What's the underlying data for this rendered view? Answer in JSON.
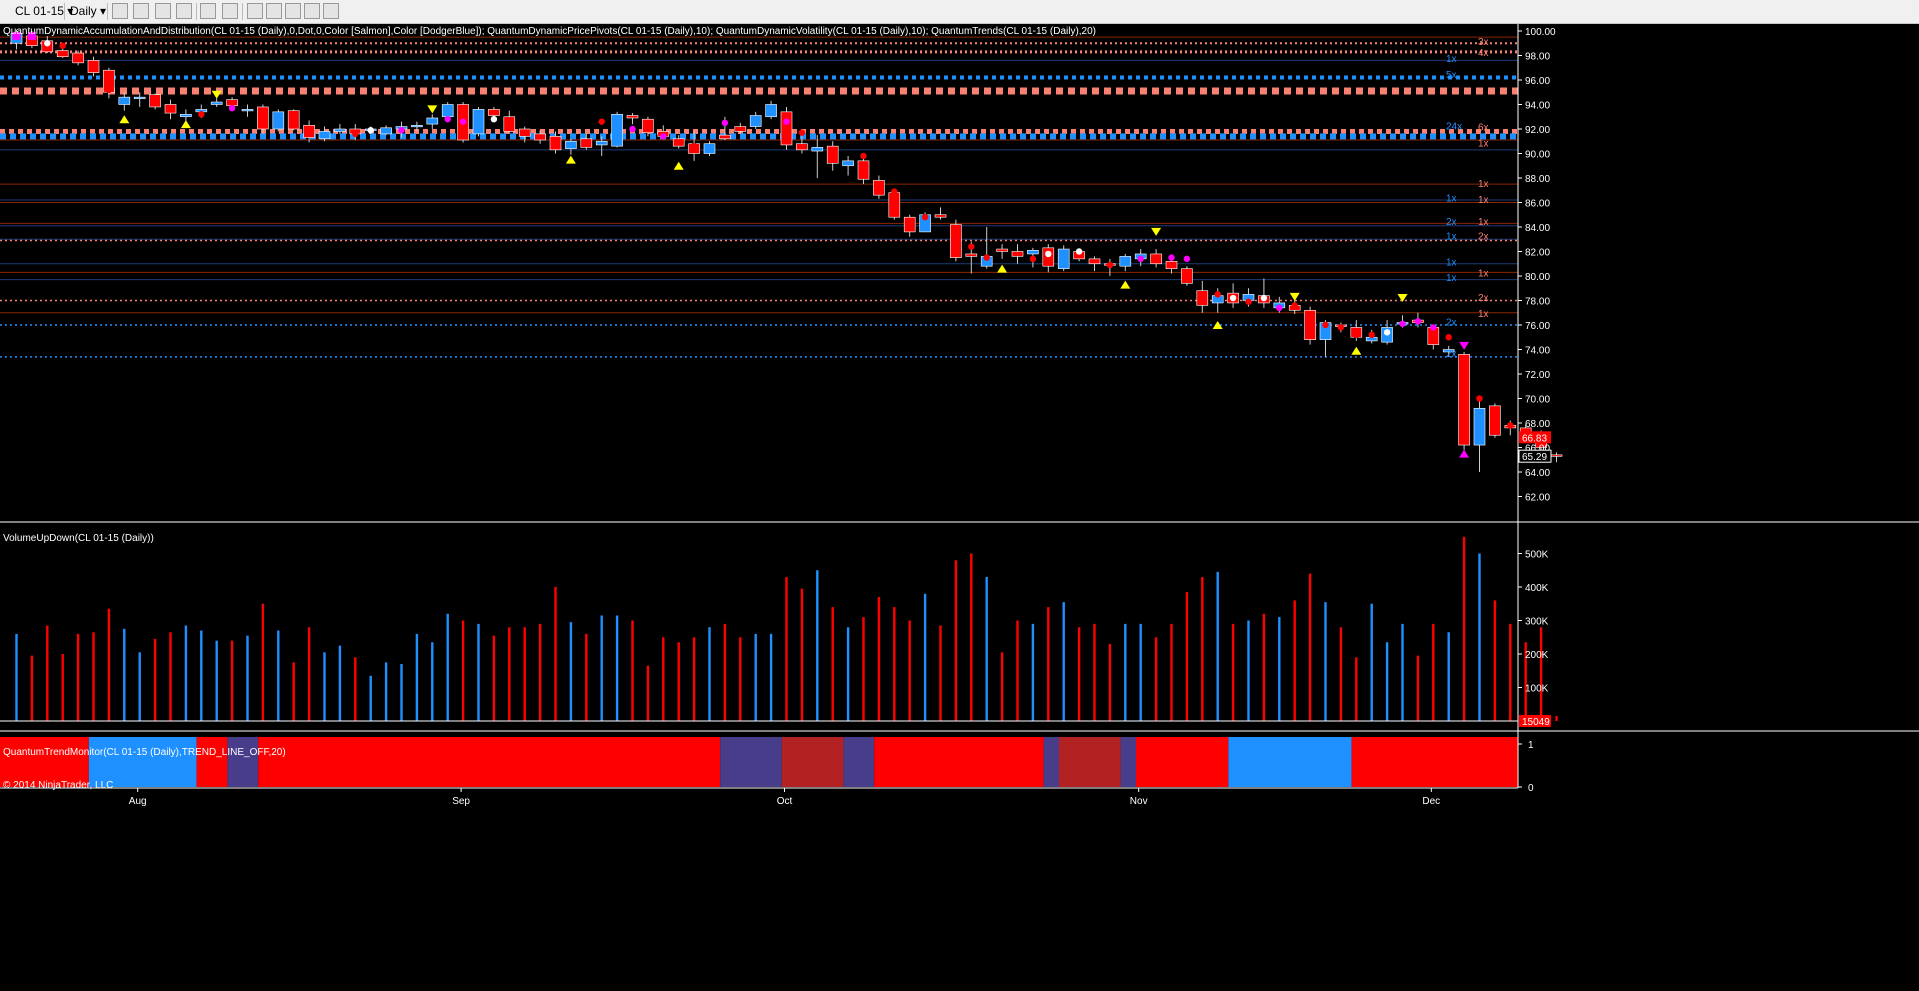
{
  "toolbar": {
    "instrument": "CL 01-15",
    "period": "Daily",
    "icons": [
      "bar-type-icon",
      "drawing-pencil-icon",
      "pointer-icon",
      "crosshair-icon",
      "cursor-icon",
      "zoom-icon",
      "properties-icon",
      "data-box-icon",
      "chart-trader-icon",
      "strategy-icon",
      "window-icon"
    ]
  },
  "price_panel": {
    "label": "QuantumDynamicAccumulationAndDistribution(CL 01-15 (Daily),0,Dot,0,Color [Salmon],Color [DodgerBlue]); QuantumDynamicPricePivots(CL 01-15 (Daily),10); QuantumDynamicVolatility(CL 01-15 (Daily),10); QuantumTrends(CL 01-15 (Daily),20)",
    "y_ticks": [
      "100.00",
      "98.00",
      "96.00",
      "94.00",
      "92.00",
      "90.00",
      "88.00",
      "86.00",
      "84.00",
      "82.00",
      "80.00",
      "78.00",
      "76.00",
      "74.00",
      "72.00",
      "70.00",
      "68.00",
      "66.00",
      "64.00",
      "62.00"
    ],
    "last_price_red": "66.83",
    "last_price_white": "65.29",
    "level_markers": [
      {
        "text": "1x",
        "price": 101.5,
        "color": "#fa8072"
      },
      {
        "text": "3x",
        "price": 99.2,
        "color": "#fa8072"
      },
      {
        "text": "4x",
        "price": 98.3,
        "color": "#fa8072"
      },
      {
        "text": "1x",
        "price": 97.8,
        "color": "#1e90ff"
      },
      {
        "text": "5x",
        "price": 96.5,
        "color": "#1e90ff"
      },
      {
        "text": "24x",
        "price": 92.3,
        "color": "#1e90ff"
      },
      {
        "text": "6x",
        "price": 92.2,
        "color": "#fa8072"
      },
      {
        "text": "1x",
        "price": 90.9,
        "color": "#fa8072"
      },
      {
        "text": "1x",
        "price": 87.6,
        "color": "#fa8072"
      },
      {
        "text": "1x",
        "price": 86.4,
        "color": "#1e90ff"
      },
      {
        "text": "1x",
        "price": 86.3,
        "color": "#fa8072"
      },
      {
        "text": "2x",
        "price": 84.5,
        "color": "#1e90ff"
      },
      {
        "text": "1x",
        "price": 84.5,
        "color": "#fa8072"
      },
      {
        "text": "1x",
        "price": 83.3,
        "color": "#1e90ff"
      },
      {
        "text": "2x",
        "price": 83.3,
        "color": "#fa8072"
      },
      {
        "text": "1x",
        "price": 81.2,
        "color": "#1e90ff"
      },
      {
        "text": "1x",
        "price": 80.3,
        "color": "#fa8072"
      },
      {
        "text": "1x",
        "price": 79.9,
        "color": "#1e90ff"
      },
      {
        "text": "2x",
        "price": 78.3,
        "color": "#fa8072"
      },
      {
        "text": "1x",
        "price": 77.0,
        "color": "#fa8072"
      },
      {
        "text": "2x",
        "price": 76.3,
        "color": "#1e90ff"
      },
      {
        "text": "2x",
        "price": 73.7,
        "color": "#1e90ff"
      }
    ]
  },
  "volume_panel": {
    "label": "VolumeUpDown(CL 01-15 (Daily))",
    "y_ticks": [
      "500K",
      "400K",
      "300K",
      "200K",
      "100K"
    ],
    "last_value": "15049"
  },
  "trend_panel": {
    "label": "QuantumTrendMonitor(CL 01-15 (Daily),TREND_LINE_OFF,20)",
    "y_ticks": [
      "1",
      "0"
    ],
    "segments": [
      {
        "from": 0,
        "to": 5,
        "color": "#ff0000"
      },
      {
        "from": 5,
        "to": 12,
        "color": "#1e90ff"
      },
      {
        "from": 12,
        "to": 14,
        "color": "#ff0000"
      },
      {
        "from": 14,
        "to": 16,
        "color": "#483d8b"
      },
      {
        "from": 16,
        "to": 46,
        "color": "#ff0000"
      },
      {
        "from": 46,
        "to": 50,
        "color": "#483d8b"
      },
      {
        "from": 50,
        "to": 54,
        "color": "#b22222"
      },
      {
        "from": 54,
        "to": 56,
        "color": "#483d8b"
      },
      {
        "from": 56,
        "to": 67,
        "color": "#ff0000"
      },
      {
        "from": 67,
        "to": 68,
        "color": "#483d8b"
      },
      {
        "from": 68,
        "to": 72,
        "color": "#b22222"
      },
      {
        "from": 72,
        "to": 73,
        "color": "#483d8b"
      },
      {
        "from": 73,
        "to": 79,
        "color": "#ff0000"
      },
      {
        "from": 79,
        "to": 87,
        "color": "#1e90ff"
      },
      {
        "from": 87,
        "to": 156,
        "color": "#ff0000"
      }
    ]
  },
  "x_axis": {
    "labels": [
      {
        "text": "Aug",
        "index": 8
      },
      {
        "text": "Sep",
        "index": 29
      },
      {
        "text": "Oct",
        "index": 50
      },
      {
        "text": "Nov",
        "index": 73
      },
      {
        "text": "Dec",
        "index": 92
      }
    ]
  },
  "copyright": "© 2014 NinjaTrader, LLC",
  "colors": {
    "up_candle": "#1e90ff",
    "down_candle": "#ff0000",
    "salmon": "#fa8072",
    "dodgerblue": "#1e90ff",
    "pivot_yellow": "#ffff00",
    "magenta": "#ff00ff",
    "panel_border": "#ffffff",
    "grid_red": "#8b2500",
    "grid_blue": "#1e3c78"
  },
  "candles": [
    [
      99.0,
      100.1,
      98.5,
      99.8,
      1,
      260
    ],
    [
      99.6,
      100.0,
      98.6,
      98.8,
      0,
      195
    ],
    [
      99.2,
      99.6,
      98.2,
      98.3,
      0,
      285
    ],
    [
      98.4,
      98.8,
      97.8,
      97.9,
      0,
      200
    ],
    [
      98.2,
      98.4,
      97.2,
      97.4,
      0,
      260
    ],
    [
      97.6,
      97.9,
      96.3,
      96.6,
      0,
      265
    ],
    [
      96.8,
      97.0,
      94.5,
      95.0,
      0,
      335
    ],
    [
      94.6,
      95.0,
      93.5,
      94.0,
      1,
      275
    ],
    [
      94.6,
      95.0,
      93.8,
      94.5,
      1,
      205
    ],
    [
      94.8,
      94.9,
      93.6,
      93.8,
      0,
      245
    ],
    [
      94.0,
      94.4,
      92.8,
      93.3,
      0,
      265
    ],
    [
      93.2,
      93.6,
      92.6,
      93.0,
      1,
      285
    ],
    [
      93.4,
      94.0,
      92.9,
      93.6,
      1,
      270
    ],
    [
      94.0,
      94.5,
      93.8,
      94.2,
      1,
      240
    ],
    [
      94.4,
      94.6,
      93.6,
      93.9,
      0,
      240
    ],
    [
      93.6,
      94.0,
      93.0,
      93.5,
      1,
      255
    ],
    [
      93.8,
      94.0,
      91.6,
      92.0,
      0,
      350
    ],
    [
      93.4,
      93.6,
      91.8,
      92.0,
      1,
      270
    ],
    [
      93.5,
      93.6,
      91.9,
      92.0,
      0,
      175
    ],
    [
      92.3,
      92.7,
      90.9,
      91.3,
      0,
      280
    ],
    [
      91.2,
      92.2,
      91.0,
      91.8,
      1,
      205
    ],
    [
      92.0,
      92.4,
      91.6,
      91.8,
      1,
      225
    ],
    [
      92.0,
      92.4,
      91.1,
      91.6,
      0,
      190
    ],
    [
      92.0,
      92.2,
      91.6,
      92.0,
      1,
      135
    ],
    [
      91.6,
      92.3,
      91.5,
      92.1,
      1,
      175
    ],
    [
      92.0,
      92.6,
      91.3,
      92.2,
      1,
      170
    ],
    [
      92.2,
      92.6,
      91.8,
      92.3,
      1,
      260
    ],
    [
      92.4,
      93.2,
      92.0,
      92.9,
      1,
      235
    ],
    [
      93.0,
      94.2,
      92.6,
      94.0,
      1,
      320
    ],
    [
      94.0,
      94.2,
      90.9,
      91.1,
      0,
      300
    ],
    [
      91.6,
      93.8,
      91.4,
      93.6,
      1,
      290
    ],
    [
      93.6,
      93.8,
      92.9,
      93.1,
      0,
      255
    ],
    [
      93.0,
      93.5,
      91.6,
      91.8,
      0,
      280
    ],
    [
      92.0,
      92.2,
      90.9,
      91.4,
      0,
      280
    ],
    [
      91.6,
      91.9,
      90.8,
      91.1,
      0,
      290
    ],
    [
      91.4,
      91.8,
      90.0,
      90.3,
      0,
      400
    ],
    [
      90.4,
      91.2,
      89.9,
      91.0,
      1,
      295
    ],
    [
      91.2,
      91.6,
      90.3,
      90.5,
      0,
      260
    ],
    [
      91.0,
      91.4,
      89.8,
      90.7,
      1,
      315
    ],
    [
      90.6,
      93.4,
      90.5,
      93.2,
      1,
      315
    ],
    [
      93.1,
      93.3,
      92.4,
      92.9,
      0,
      300
    ],
    [
      92.8,
      93.0,
      91.4,
      91.7,
      0,
      165
    ],
    [
      91.8,
      92.3,
      91.3,
      91.4,
      0,
      250
    ],
    [
      91.2,
      91.5,
      90.4,
      90.6,
      0,
      235
    ],
    [
      90.8,
      91.8,
      89.4,
      90.0,
      0,
      250
    ],
    [
      90.0,
      91.0,
      89.8,
      90.8,
      1,
      280
    ],
    [
      91.2,
      93.0,
      91.1,
      91.5,
      0,
      290
    ],
    [
      91.8,
      92.5,
      91.6,
      92.2,
      0,
      250
    ],
    [
      92.2,
      93.4,
      92.0,
      93.1,
      1,
      260
    ],
    [
      93.0,
      94.3,
      92.8,
      94.0,
      1,
      260
    ],
    [
      93.4,
      93.8,
      90.3,
      90.7,
      0,
      430
    ],
    [
      90.8,
      91.8,
      90.0,
      90.3,
      0,
      395
    ],
    [
      90.5,
      91.5,
      88.0,
      90.2,
      1,
      450
    ],
    [
      90.6,
      91.0,
      88.6,
      89.2,
      0,
      340
    ],
    [
      89.4,
      89.8,
      88.2,
      89.0,
      1,
      280
    ],
    [
      89.4,
      89.6,
      87.5,
      87.9,
      0,
      310
    ],
    [
      87.8,
      88.2,
      86.3,
      86.6,
      0,
      370
    ],
    [
      86.8,
      87.0,
      84.6,
      84.8,
      0,
      340
    ],
    [
      84.8,
      85.0,
      83.2,
      83.6,
      0,
      300
    ],
    [
      83.6,
      85.2,
      83.6,
      85.0,
      1,
      380
    ],
    [
      85.0,
      85.6,
      84.6,
      84.8,
      0,
      285
    ],
    [
      84.2,
      84.6,
      81.2,
      81.5,
      0,
      480
    ],
    [
      81.8,
      82.8,
      80.2,
      81.6,
      0,
      500
    ],
    [
      80.8,
      84.0,
      80.6,
      81.6,
      1,
      430
    ],
    [
      82.2,
      82.6,
      81.4,
      82.0,
      0,
      205
    ],
    [
      82.0,
      82.6,
      81.0,
      81.6,
      0,
      300
    ],
    [
      81.8,
      82.3,
      80.7,
      82.1,
      1,
      290
    ],
    [
      82.3,
      82.6,
      80.3,
      80.8,
      0,
      340
    ],
    [
      80.6,
      82.5,
      80.4,
      82.2,
      1,
      355
    ],
    [
      82.0,
      82.2,
      81.2,
      81.4,
      0,
      280
    ],
    [
      81.4,
      81.6,
      80.4,
      81.0,
      0,
      290
    ],
    [
      81.0,
      81.4,
      80.0,
      81.0,
      0,
      230
    ],
    [
      80.8,
      81.8,
      80.4,
      81.6,
      1,
      290
    ],
    [
      81.4,
      82.2,
      80.8,
      81.8,
      1,
      290
    ],
    [
      81.8,
      82.2,
      80.7,
      81.0,
      0,
      250
    ],
    [
      81.2,
      81.4,
      80.2,
      80.6,
      0,
      290
    ],
    [
      80.6,
      80.8,
      79.2,
      79.4,
      0,
      385
    ],
    [
      78.8,
      79.6,
      77.0,
      77.6,
      0,
      430
    ],
    [
      77.8,
      79.0,
      77.0,
      78.4,
      1,
      445
    ],
    [
      78.6,
      79.4,
      77.4,
      77.8,
      0,
      290
    ],
    [
      78.0,
      79.0,
      77.5,
      78.5,
      1,
      300
    ],
    [
      78.4,
      79.8,
      77.4,
      77.8,
      0,
      320
    ],
    [
      77.8,
      78.3,
      77.0,
      77.4,
      1,
      310
    ],
    [
      77.6,
      78.3,
      76.9,
      77.2,
      0,
      360
    ],
    [
      77.2,
      77.5,
      74.4,
      74.8,
      0,
      440
    ],
    [
      74.8,
      76.4,
      73.4,
      76.2,
      1,
      355
    ],
    [
      76.0,
      76.2,
      75.4,
      75.9,
      0,
      280
    ],
    [
      75.8,
      76.4,
      74.7,
      75.0,
      0,
      190
    ],
    [
      75.0,
      75.6,
      74.5,
      74.7,
      1,
      350
    ],
    [
      74.6,
      76.4,
      74.4,
      75.8,
      1,
      235
    ],
    [
      76.1,
      76.8,
      75.8,
      76.2,
      1,
      290
    ],
    [
      76.4,
      77.0,
      75.8,
      76.2,
      0,
      195
    ],
    [
      75.8,
      76.0,
      74.0,
      74.4,
      0,
      290
    ],
    [
      74.0,
      74.3,
      73.4,
      73.8,
      1,
      265
    ],
    [
      73.6,
      73.8,
      65.8,
      66.2,
      0,
      550
    ],
    [
      66.2,
      70.2,
      64.0,
      69.2,
      1,
      500
    ],
    [
      69.4,
      69.6,
      66.8,
      67.0,
      0,
      360
    ],
    [
      67.6,
      68.2,
      67.0,
      67.8,
      0,
      290
    ],
    [
      67.6,
      67.9,
      66.8,
      67.0,
      0,
      235
    ],
    [
      67.2,
      67.4,
      65.6,
      66.0,
      0,
      280
    ],
    [
      65.4,
      65.6,
      64.8,
      65.3,
      0,
      15
    ]
  ],
  "markers": [
    [
      0,
      99.6,
      "sq",
      "#ff00ff"
    ],
    [
      1,
      99.6,
      "sq",
      "#ff00ff"
    ],
    [
      2,
      99.0,
      "dot",
      "#ffffff"
    ],
    [
      3,
      98.8,
      "dot",
      "#ff0000"
    ],
    [
      6,
      95.2,
      "dot",
      "#ff0000"
    ],
    [
      7,
      92.8,
      "tri",
      "#ffff00"
    ],
    [
      10,
      93.6,
      "dot",
      "#ff0000"
    ],
    [
      11,
      92.4,
      "tri",
      "#ffff00"
    ],
    [
      12,
      93.2,
      "dot",
      "#ff0000"
    ],
    [
      13,
      94.8,
      "tri_dn",
      "#ffff00"
    ],
    [
      14,
      93.7,
      "dot",
      "#ff00ff"
    ],
    [
      16,
      92.8,
      "dot",
      "#ff0000"
    ],
    [
      22,
      91.6,
      "dot",
      "#ff0000"
    ],
    [
      23,
      91.9,
      "dot",
      "#ffffff"
    ],
    [
      25,
      91.9,
      "dot",
      "#ff00ff"
    ],
    [
      27,
      93.6,
      "tri_dn",
      "#ffff00"
    ],
    [
      28,
      92.8,
      "dot",
      "#ff00ff"
    ],
    [
      29,
      92.6,
      "dot",
      "#ff00ff"
    ],
    [
      31,
      92.8,
      "dot",
      "#ffffff"
    ],
    [
      36,
      89.5,
      "tri",
      "#ffff00"
    ],
    [
      38,
      92.6,
      "dot",
      "#ff0000"
    ],
    [
      40,
      92.0,
      "dot",
      "#ff00ff"
    ],
    [
      42,
      91.4,
      "dot",
      "#ff00ff"
    ],
    [
      43,
      89.0,
      "tri",
      "#ffff00"
    ],
    [
      44,
      90.6,
      "dot",
      "#ff0000"
    ],
    [
      46,
      92.5,
      "dot",
      "#ff00ff"
    ],
    [
      50,
      92.6,
      "dot",
      "#ff00ff"
    ],
    [
      51,
      91.7,
      "dot",
      "#ff0000"
    ],
    [
      55,
      89.8,
      "dot",
      "#ff0000"
    ],
    [
      57,
      86.9,
      "dot",
      "#ff0000"
    ],
    [
      59,
      84.8,
      "dot",
      "#ff0000"
    ],
    [
      62,
      82.4,
      "dot",
      "#ff0000"
    ],
    [
      63,
      81.5,
      "dot",
      "#ff0000"
    ],
    [
      64,
      80.6,
      "tri",
      "#ffff00"
    ],
    [
      66,
      81.4,
      "dot",
      "#ff0000"
    ],
    [
      67,
      81.8,
      "dot",
      "#ffffff"
    ],
    [
      69,
      82.0,
      "dot",
      "#ffffff"
    ],
    [
      71,
      80.9,
      "dot",
      "#ff0000"
    ],
    [
      72,
      79.3,
      "tri",
      "#ffff00"
    ],
    [
      73,
      81.4,
      "dot",
      "#ff00ff"
    ],
    [
      74,
      83.6,
      "tri_dn",
      "#ffff00"
    ],
    [
      75,
      81.5,
      "dot",
      "#ff00ff"
    ],
    [
      76,
      81.4,
      "dot",
      "#ff00ff"
    ],
    [
      78,
      78.5,
      "dot",
      "#ff0000"
    ],
    [
      78,
      76.0,
      "tri",
      "#ffff00"
    ],
    [
      79,
      78.2,
      "dot",
      "#ffffff"
    ],
    [
      80,
      77.9,
      "dot",
      "#ff0000"
    ],
    [
      81,
      78.2,
      "dot",
      "#ffffff"
    ],
    [
      82,
      77.4,
      "dot",
      "#ff00ff"
    ],
    [
      83,
      78.3,
      "tri_dn",
      "#ffff00"
    ],
    [
      83,
      77.6,
      "dot",
      "#ff0000"
    ],
    [
      85,
      76.0,
      "dot",
      "#ff0000"
    ],
    [
      86,
      75.8,
      "dot",
      "#ff0000"
    ],
    [
      87,
      75.2,
      "dot",
      "#ff0000"
    ],
    [
      87,
      73.9,
      "tri",
      "#ffff00"
    ],
    [
      88,
      75.2,
      "dot",
      "#ff0000"
    ],
    [
      89,
      75.4,
      "dot",
      "#ffffff"
    ],
    [
      90,
      76.1,
      "dot",
      "#ff00ff"
    ],
    [
      90,
      78.2,
      "tri_dn",
      "#ffff00"
    ],
    [
      91,
      76.3,
      "dot",
      "#ff00ff"
    ],
    [
      92,
      75.8,
      "dot",
      "#ff00ff"
    ],
    [
      93,
      75.0,
      "dot",
      "#ff0000"
    ],
    [
      94,
      74.3,
      "tri_dn",
      "#ff00ff"
    ],
    [
      94,
      65.5,
      "tri",
      "#ff00ff"
    ],
    [
      95,
      70.0,
      "dot",
      "#ff0000"
    ],
    [
      96,
      68.5,
      "dot",
      "#ff0000"
    ],
    [
      97,
      67.8,
      "dot",
      "#ff0000"
    ]
  ]
}
